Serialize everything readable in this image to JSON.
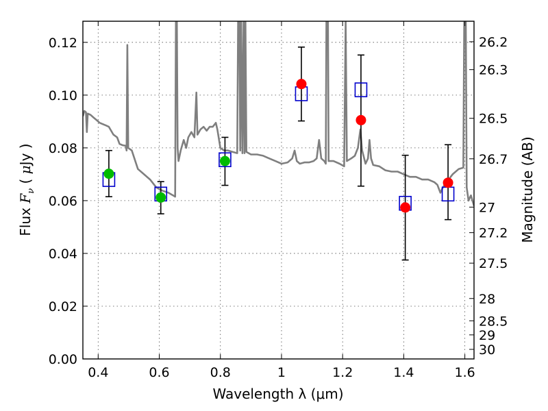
{
  "chart_data": {
    "type": "scatter",
    "title": "",
    "xlabel": "Wavelength  λ (μm)",
    "ylabel_parts": {
      "prefix": "Flux ",
      "symbol": "F",
      "subscript": "ν",
      "unit_open": " ( ",
      "unit_mu": "μ",
      "unit_rest": "Jy )"
    },
    "y2label": "Magnitude (AB)",
    "xlim": [
      0.35,
      1.63
    ],
    "ylim": [
      0.0,
      0.128
    ],
    "x_ticks": [
      {
        "value": 0.4,
        "label": "0.4"
      },
      {
        "value": 0.6,
        "label": "0.6"
      },
      {
        "value": 0.8,
        "label": "0.8"
      },
      {
        "value": 1.0,
        "label": "1"
      },
      {
        "value": 1.2,
        "label": "1.2"
      },
      {
        "value": 1.4,
        "label": "1.4"
      },
      {
        "value": 1.6,
        "label": "1.6"
      }
    ],
    "y_ticks": [
      {
        "value": 0.0,
        "label": "0.00"
      },
      {
        "value": 0.02,
        "label": "0.02"
      },
      {
        "value": 0.04,
        "label": "0.04"
      },
      {
        "value": 0.06,
        "label": "0.06"
      },
      {
        "value": 0.08,
        "label": "0.08"
      },
      {
        "value": 0.1,
        "label": "0.10"
      },
      {
        "value": 0.12,
        "label": "0.12"
      }
    ],
    "y2_ticks": [
      {
        "mag": 26.2,
        "label": "26.2"
      },
      {
        "mag": 26.3,
        "label": "26.3"
      },
      {
        "mag": 26.5,
        "label": "26.5"
      },
      {
        "mag": 26.7,
        "label": "26.7"
      },
      {
        "mag": 27.0,
        "label": "27"
      },
      {
        "mag": 27.2,
        "label": "27.2"
      },
      {
        "mag": 27.5,
        "label": "27.5"
      },
      {
        "mag": 28.0,
        "label": "28"
      },
      {
        "mag": 28.5,
        "label": "28.5"
      },
      {
        "mag": 29.0,
        "label": "29"
      },
      {
        "mag": 30.0,
        "label": "30"
      }
    ],
    "grid": true,
    "colors": {
      "spectrum": "#7f7f7f",
      "model_boxes": "#0000cc",
      "observed_optical": "#00bb00",
      "observed_nir": "#ff0000",
      "errorbars": "#000000"
    },
    "spectrum": {
      "name": "",
      "points": [
        [
          0.35,
          0.092
        ],
        [
          0.355,
          0.094
        ],
        [
          0.36,
          0.0935
        ],
        [
          0.363,
          0.086
        ],
        [
          0.366,
          0.093
        ],
        [
          0.375,
          0.0925
        ],
        [
          0.385,
          0.0915
        ],
        [
          0.395,
          0.0905
        ],
        [
          0.405,
          0.0895
        ],
        [
          0.415,
          0.089
        ],
        [
          0.425,
          0.0885
        ],
        [
          0.435,
          0.088
        ],
        [
          0.45,
          0.085
        ],
        [
          0.462,
          0.084
        ],
        [
          0.47,
          0.0815
        ],
        [
          0.48,
          0.081
        ],
        [
          0.49,
          0.0808
        ],
        [
          0.493,
          0.079
        ],
        [
          0.4955,
          0.119
        ],
        [
          0.4985,
          0.08
        ],
        [
          0.51,
          0.079
        ],
        [
          0.53,
          0.072
        ],
        [
          0.55,
          0.07
        ],
        [
          0.57,
          0.068
        ],
        [
          0.59,
          0.065
        ],
        [
          0.61,
          0.0638
        ],
        [
          0.63,
          0.063
        ],
        [
          0.645,
          0.062
        ],
        [
          0.652,
          0.0615
        ],
        [
          0.6545,
          0.128
        ],
        [
          0.6575,
          0.128
        ],
        [
          0.66,
          0.08
        ],
        [
          0.663,
          0.075
        ],
        [
          0.67,
          0.079
        ],
        [
          0.68,
          0.083
        ],
        [
          0.688,
          0.08
        ],
        [
          0.695,
          0.084
        ],
        [
          0.705,
          0.086
        ],
        [
          0.715,
          0.084
        ],
        [
          0.7215,
          0.101
        ],
        [
          0.725,
          0.085
        ],
        [
          0.735,
          0.087
        ],
        [
          0.745,
          0.088
        ],
        [
          0.755,
          0.0865
        ],
        [
          0.765,
          0.088
        ],
        [
          0.775,
          0.088
        ],
        [
          0.785,
          0.0895
        ],
        [
          0.79,
          0.087
        ],
        [
          0.8,
          0.08
        ],
        [
          0.812,
          0.079
        ],
        [
          0.825,
          0.079
        ],
        [
          0.84,
          0.0785
        ],
        [
          0.855,
          0.078
        ],
        [
          0.858,
          0.128
        ],
        [
          0.862,
          0.128
        ],
        [
          0.865,
          0.079
        ],
        [
          0.868,
          0.128
        ],
        [
          0.872,
          0.078
        ],
        [
          0.876,
          0.128
        ],
        [
          0.879,
          0.078
        ],
        [
          0.882,
          0.128
        ],
        [
          0.885,
          0.0785
        ],
        [
          0.9,
          0.0775
        ],
        [
          0.92,
          0.0775
        ],
        [
          0.94,
          0.077
        ],
        [
          0.96,
          0.076
        ],
        [
          0.98,
          0.075
        ],
        [
          1.0,
          0.074
        ],
        [
          1.02,
          0.0745
        ],
        [
          1.035,
          0.076
        ],
        [
          1.043,
          0.079
        ],
        [
          1.05,
          0.075
        ],
        [
          1.06,
          0.074
        ],
        [
          1.075,
          0.0745
        ],
        [
          1.09,
          0.0745
        ],
        [
          1.105,
          0.075
        ],
        [
          1.115,
          0.076
        ],
        [
          1.123,
          0.083
        ],
        [
          1.13,
          0.076
        ],
        [
          1.14,
          0.075
        ],
        [
          1.145,
          0.074
        ],
        [
          1.147,
          0.128
        ],
        [
          1.152,
          0.128
        ],
        [
          1.154,
          0.075
        ],
        [
          1.17,
          0.075
        ],
        [
          1.19,
          0.074
        ],
        [
          1.205,
          0.073
        ],
        [
          1.21,
          0.128
        ],
        [
          1.214,
          0.075
        ],
        [
          1.228,
          0.076
        ],
        [
          1.24,
          0.077
        ],
        [
          1.25,
          0.08
        ],
        [
          1.258,
          0.087
        ],
        [
          1.264,
          0.079
        ],
        [
          1.275,
          0.074
        ],
        [
          1.283,
          0.076
        ],
        [
          1.288,
          0.083
        ],
        [
          1.293,
          0.076
        ],
        [
          1.3,
          0.0735
        ],
        [
          1.32,
          0.073
        ],
        [
          1.34,
          0.0715
        ],
        [
          1.36,
          0.071
        ],
        [
          1.38,
          0.071
        ],
        [
          1.4,
          0.07
        ],
        [
          1.42,
          0.069
        ],
        [
          1.44,
          0.069
        ],
        [
          1.46,
          0.068
        ],
        [
          1.48,
          0.068
        ],
        [
          1.5,
          0.067
        ],
        [
          1.51,
          0.066
        ],
        [
          1.52,
          0.063
        ],
        [
          1.528,
          0.065
        ],
        [
          1.54,
          0.067
        ],
        [
          1.56,
          0.07
        ],
        [
          1.58,
          0.072
        ],
        [
          1.595,
          0.0725
        ],
        [
          1.598,
          0.128
        ],
        [
          1.603,
          0.128
        ],
        [
          1.606,
          0.065
        ],
        [
          1.612,
          0.06
        ],
        [
          1.62,
          0.062
        ],
        [
          1.63,
          0.058
        ]
      ]
    },
    "model_points": [
      {
        "x": 0.435,
        "y": 0.068
      },
      {
        "x": 0.605,
        "y": 0.0625
      },
      {
        "x": 0.815,
        "y": 0.0755
      },
      {
        "x": 1.065,
        "y": 0.1005
      },
      {
        "x": 1.26,
        "y": 0.102
      },
      {
        "x": 1.405,
        "y": 0.059
      },
      {
        "x": 1.545,
        "y": 0.0625
      }
    ],
    "observed_optical": [
      {
        "x": 0.435,
        "y": 0.0702,
        "err_low": 0.0615,
        "err_high": 0.079
      },
      {
        "x": 0.605,
        "y": 0.0612,
        "err_low": 0.055,
        "err_high": 0.0672
      },
      {
        "x": 0.815,
        "y": 0.075,
        "err_low": 0.0658,
        "err_high": 0.084
      }
    ],
    "observed_nir": [
      {
        "x": 1.065,
        "y": 0.1042,
        "err_low": 0.0902,
        "err_high": 0.1182
      },
      {
        "x": 1.26,
        "y": 0.0905,
        "err_low": 0.0655,
        "err_high": 0.1152
      },
      {
        "x": 1.405,
        "y": 0.0574,
        "err_low": 0.0375,
        "err_high": 0.0772
      },
      {
        "x": 1.545,
        "y": 0.0668,
        "err_low": 0.0528,
        "err_high": 0.0812
      }
    ]
  }
}
